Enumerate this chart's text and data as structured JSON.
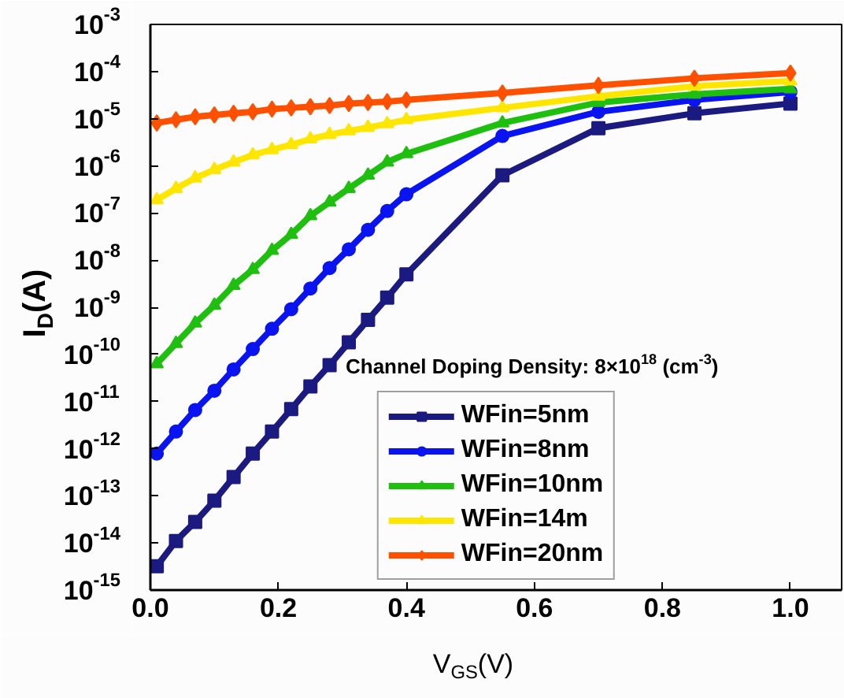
{
  "chart_data": {
    "type": "line",
    "xlabel": "V$_{GS}$(V)",
    "ylabel": "I$_{D}$(A)",
    "annotations": [
      "Channel Doping Density: 8×10$^{18}$ (cm$^{-3}$)"
    ],
    "x": [
      0.01,
      0.04,
      0.07,
      0.1,
      0.13,
      0.16,
      0.19,
      0.22,
      0.25,
      0.28,
      0.31,
      0.34,
      0.37,
      0.4,
      0.55,
      0.7,
      0.85,
      1.0
    ],
    "series": [
      {
        "name": "WFin=5nm",
        "color": "#1a1a80",
        "marker": "square",
        "values": [
          3.2e-15,
          1.1e-14,
          2.8e-14,
          7.9e-14,
          2.5e-13,
          7.9e-13,
          2.3e-12,
          6.9e-12,
          2.1e-11,
          5.9e-11,
          1.8e-10,
          5.4e-10,
          1.6e-09,
          5e-09,
          6.3e-07,
          6.3e-06,
          1.3e-05,
          2.1e-05
        ]
      },
      {
        "name": "WFin=8nm",
        "color": "#0a14f0",
        "marker": "circle",
        "values": [
          7.9e-13,
          2.3e-12,
          6.6e-12,
          1.7e-11,
          4.8e-11,
          1.3e-10,
          3.5e-10,
          9.1e-10,
          2.5e-09,
          6.8e-09,
          1.7e-08,
          4.4e-08,
          1.1e-07,
          2.5e-07,
          4.3e-06,
          1.4e-05,
          2.5e-05,
          3.7e-05
        ]
      },
      {
        "name": "WFin=10nm",
        "color": "#1fbf0f",
        "marker": "triangle",
        "values": [
          6.3e-11,
          1.7e-10,
          4.6e-10,
          1.1e-09,
          2.9e-09,
          6.3e-09,
          1.6e-08,
          3.5e-08,
          8.7e-08,
          1.7e-07,
          3.3e-07,
          6.3e-07,
          1.2e-06,
          1.8e-06,
          8.1e-06,
          2.2e-05,
          3.3e-05,
          4.3e-05
        ]
      },
      {
        "name": "WFin=14m",
        "color": "#ffe600",
        "marker": "triangle",
        "values": [
          1.9e-07,
          3.3e-07,
          5.5e-07,
          8.3e-07,
          1.2e-06,
          1.7e-06,
          2.2e-06,
          2.8e-06,
          3.7e-06,
          4.6e-06,
          5.5e-06,
          6.5e-06,
          7.8e-06,
          9.5e-06,
          1.7e-05,
          3e-05,
          4.9e-05,
          6.3e-05
        ]
      },
      {
        "name": "WFin=20nm",
        "color": "#ff5000",
        "marker": "diamond",
        "values": [
          8.1e-06,
          9.5e-06,
          1.1e-05,
          1.2e-05,
          1.3e-05,
          1.4e-05,
          1.6e-05,
          1.7e-05,
          1.8e-05,
          1.9e-05,
          2.1e-05,
          2.2e-05,
          2.3e-05,
          2.5e-05,
          3.5e-05,
          5.1e-05,
          7.2e-05,
          9.3e-05
        ]
      }
    ],
    "log": "y",
    "xlim": [
      0,
      1.08
    ],
    "ylim": [
      1e-15,
      0.001
    ],
    "xticks": [
      {
        "value": 0,
        "label": "0.0"
      },
      {
        "value": 0.2,
        "label": "0.2"
      },
      {
        "value": 0.4,
        "label": "0.4"
      },
      {
        "value": 0.6,
        "label": "0.6"
      },
      {
        "value": 0.8,
        "label": "0.8"
      },
      {
        "value": 1.0,
        "label": "1.0"
      }
    ],
    "yticks": [
      {
        "value": 1e-15,
        "label": "10$^{-15}$"
      },
      {
        "value": 1e-14,
        "label": "10$^{-14}$"
      },
      {
        "value": 1e-13,
        "label": "10$^{-13}$"
      },
      {
        "value": 1e-12,
        "label": "10$^{-12}$"
      },
      {
        "value": 1e-11,
        "label": "10$^{-11}$"
      },
      {
        "value": 1e-10,
        "label": "10$^{-10}$"
      },
      {
        "value": 1e-09,
        "label": "10$^{-9}$"
      },
      {
        "value": 1e-08,
        "label": "10$^{-8}$"
      },
      {
        "value": 1e-07,
        "label": "10$^{-7}$"
      },
      {
        "value": 1e-06,
        "label": "10$^{-6}$"
      },
      {
        "value": 1e-05,
        "label": "10$^{-5}$"
      },
      {
        "value": 0.0001,
        "label": "10$^{-4}$"
      },
      {
        "value": 0.001,
        "label": "10$^{-3}$"
      }
    ],
    "grid": false,
    "legend": "bottom",
    "line_style": "solid"
  }
}
